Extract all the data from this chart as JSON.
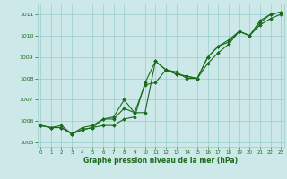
{
  "xlabel": "Graphe pression niveau de la mer (hPa)",
  "x": [
    0,
    1,
    2,
    3,
    4,
    5,
    6,
    7,
    8,
    9,
    10,
    11,
    12,
    13,
    14,
    15,
    16,
    17,
    18,
    19,
    20,
    21,
    22,
    23
  ],
  "line1": [
    1005.8,
    1005.7,
    1005.7,
    1005.4,
    1005.6,
    1005.7,
    1005.8,
    1005.8,
    1006.1,
    1006.2,
    1007.8,
    1008.8,
    1008.4,
    1008.3,
    1008.0,
    1008.0,
    1009.0,
    1009.5,
    1009.8,
    1010.2,
    1010.0,
    1010.7,
    1011.0,
    1011.1
  ],
  "line2": [
    1005.8,
    1005.7,
    1005.7,
    1005.4,
    1005.7,
    1005.8,
    1006.1,
    1006.1,
    1006.6,
    1006.4,
    1006.4,
    1008.8,
    1008.4,
    1008.2,
    1008.1,
    1008.0,
    1008.7,
    1009.2,
    1009.6,
    1010.2,
    1010.0,
    1010.5,
    1010.8,
    1011.0
  ],
  "line3": [
    1005.8,
    1005.7,
    1005.8,
    1005.4,
    1005.6,
    1005.7,
    1006.1,
    1006.2,
    1007.0,
    1006.4,
    1007.7,
    1007.8,
    1008.4,
    1008.2,
    1008.1,
    1008.0,
    1009.0,
    1009.5,
    1009.7,
    1010.2,
    1010.0,
    1010.6,
    1011.0,
    1011.1
  ],
  "ylim": [
    1004.8,
    1011.5
  ],
  "yticks": [
    1005,
    1006,
    1007,
    1008,
    1009,
    1010,
    1011
  ],
  "xticks": [
    0,
    1,
    2,
    3,
    4,
    5,
    6,
    7,
    8,
    9,
    10,
    11,
    12,
    13,
    14,
    15,
    16,
    17,
    18,
    19,
    20,
    21,
    22,
    23
  ],
  "line_color": "#1a6b1a",
  "bg_color": "#cce8e8",
  "grid_color": "#99cccc",
  "xlabel_color": "#1a6b1a",
  "marker": "D",
  "marker_size": 1.8,
  "line_width": 0.8
}
